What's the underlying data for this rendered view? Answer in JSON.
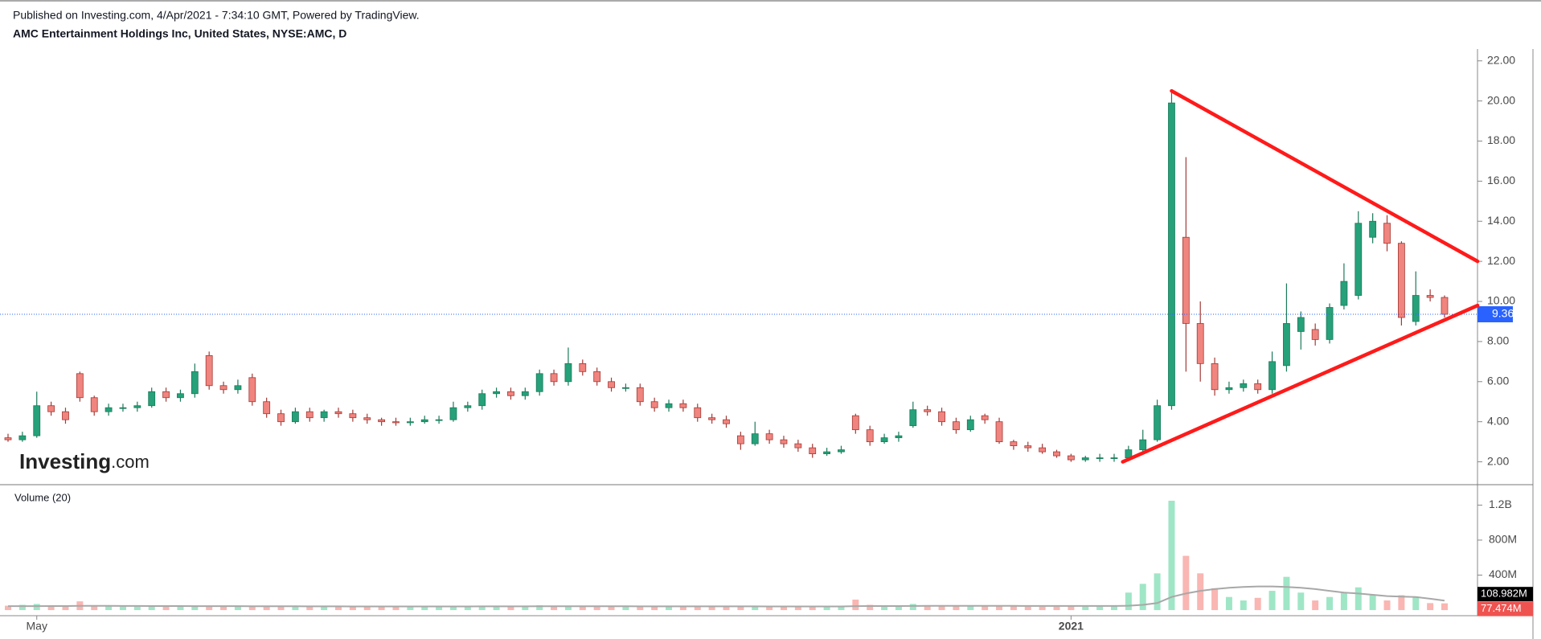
{
  "chart_data": {
    "type": "candlestick",
    "subtitle": "Published on Investing.com, 4/Apr/2021 - 7:34:10 GMT, Powered by TradingView.",
    "title": "AMC Entertainment Holdings Inc, United States, NYSE:AMC, D",
    "watermark": "Investing",
    "watermark_suffix": ".com",
    "categories": [
      null,
      null,
      "May",
      null,
      null,
      null,
      null,
      null,
      null,
      null,
      null,
      null,
      null,
      null,
      null,
      null,
      null,
      null,
      null,
      null,
      null,
      null,
      null,
      null,
      null,
      null,
      null,
      null,
      null,
      null,
      null,
      null,
      null,
      null,
      null,
      null,
      null,
      null,
      null,
      null,
      null,
      null,
      null,
      null,
      null,
      null,
      null,
      null,
      null,
      null,
      null,
      null,
      null,
      null,
      null,
      null,
      null,
      null,
      null,
      null,
      null,
      null,
      null,
      null,
      null,
      null,
      null,
      null,
      null,
      null,
      null,
      null,
      null,
      null,
      "2021",
      null,
      null,
      null,
      null,
      null,
      null,
      null,
      null,
      null,
      null,
      null,
      null,
      null,
      null,
      null,
      null,
      null,
      null,
      null,
      null,
      null,
      null,
      null,
      null,
      null,
      null
    ],
    "open": [
      3.2,
      3.1,
      3.3,
      4.8,
      4.5,
      6.4,
      5.2,
      4.5,
      4.7,
      4.7,
      4.8,
      5.5,
      5.2,
      5.4,
      7.3,
      5.8,
      5.6,
      6.2,
      5.0,
      4.4,
      4.0,
      4.5,
      4.2,
      4.5,
      4.4,
      4.2,
      4.1,
      4.0,
      3.95,
      4.0,
      4.1,
      4.1,
      4.7,
      4.8,
      5.4,
      5.5,
      5.3,
      5.5,
      6.4,
      6.0,
      6.9,
      6.5,
      6.0,
      5.7,
      5.7,
      5.0,
      4.7,
      4.9,
      4.7,
      4.2,
      4.1,
      3.3,
      2.9,
      3.4,
      3.1,
      2.9,
      2.7,
      2.4,
      2.5,
      4.3,
      3.6,
      3.0,
      3.2,
      3.8,
      4.6,
      4.5,
      4.0,
      3.6,
      4.3,
      4.0,
      3.0,
      2.8,
      2.7,
      2.5,
      2.3,
      2.1,
      2.2,
      2.2,
      2.2,
      2.6,
      3.1,
      4.8,
      13.2,
      8.9,
      6.9,
      5.6,
      5.7,
      5.9,
      5.6,
      6.8,
      8.5,
      8.6,
      8.1,
      9.8,
      10.3,
      13.2,
      13.9,
      12.9,
      9.0,
      10.3,
      10.2
    ],
    "high": [
      3.4,
      3.5,
      5.5,
      5.0,
      4.7,
      6.5,
      5.3,
      4.9,
      4.9,
      5.0,
      5.7,
      5.7,
      5.6,
      6.9,
      7.5,
      6.0,
      6.1,
      6.4,
      5.2,
      4.6,
      4.7,
      4.7,
      4.6,
      4.7,
      4.6,
      4.4,
      4.2,
      4.2,
      4.2,
      4.3,
      4.3,
      5.0,
      5.0,
      5.6,
      5.7,
      5.7,
      5.7,
      6.6,
      6.6,
      7.7,
      7.1,
      6.7,
      6.2,
      5.9,
      5.9,
      5.2,
      5.1,
      5.1,
      4.9,
      4.4,
      4.3,
      3.5,
      4.0,
      3.6,
      3.3,
      3.1,
      2.9,
      2.7,
      2.8,
      4.4,
      3.8,
      3.4,
      3.5,
      5.0,
      4.8,
      4.7,
      4.2,
      4.3,
      4.4,
      4.2,
      3.1,
      3.0,
      2.9,
      2.6,
      2.4,
      2.3,
      2.4,
      2.4,
      2.8,
      3.6,
      5.1,
      20.4,
      17.2,
      10.0,
      7.2,
      6.0,
      6.1,
      6.1,
      7.5,
      10.9,
      9.5,
      8.9,
      9.9,
      11.9,
      14.5,
      14.4,
      14.3,
      13.0,
      11.5,
      10.6,
      10.3
    ],
    "low": [
      3.0,
      3.0,
      3.2,
      4.3,
      3.9,
      5.0,
      4.3,
      4.3,
      4.5,
      4.5,
      4.7,
      5.0,
      5.0,
      5.2,
      5.6,
      5.4,
      5.4,
      4.8,
      4.2,
      3.8,
      3.9,
      4.0,
      4.0,
      4.2,
      4.0,
      3.9,
      3.8,
      3.8,
      3.8,
      3.9,
      3.9,
      4.0,
      4.5,
      4.6,
      5.2,
      5.1,
      5.1,
      5.3,
      5.8,
      5.8,
      6.3,
      5.8,
      5.5,
      5.5,
      4.8,
      4.5,
      4.5,
      4.5,
      4.0,
      3.9,
      3.7,
      2.6,
      2.8,
      2.9,
      2.7,
      2.5,
      2.2,
      2.3,
      2.4,
      3.4,
      2.8,
      2.9,
      3.0,
      3.7,
      4.3,
      3.8,
      3.4,
      3.5,
      3.9,
      2.9,
      2.6,
      2.5,
      2.4,
      2.2,
      2.0,
      2.0,
      2.0,
      2.0,
      2.1,
      2.5,
      3.0,
      4.6,
      6.5,
      6.0,
      5.3,
      5.4,
      5.5,
      5.4,
      5.4,
      6.5,
      7.6,
      7.8,
      7.9,
      9.6,
      10.1,
      12.9,
      12.5,
      8.8,
      8.8,
      10.0,
      9.2
    ],
    "close": [
      3.1,
      3.3,
      4.8,
      4.5,
      4.1,
      5.2,
      4.5,
      4.7,
      4.7,
      4.8,
      5.5,
      5.2,
      5.4,
      6.5,
      5.8,
      5.6,
      5.8,
      5.0,
      4.4,
      4.0,
      4.5,
      4.2,
      4.5,
      4.4,
      4.2,
      4.1,
      4.0,
      3.95,
      4.0,
      4.1,
      4.1,
      4.7,
      4.8,
      5.4,
      5.5,
      5.3,
      5.5,
      6.4,
      6.0,
      6.9,
      6.5,
      6.0,
      5.7,
      5.7,
      5.0,
      4.7,
      4.9,
      4.7,
      4.2,
      4.1,
      3.9,
      2.9,
      3.4,
      3.1,
      2.9,
      2.7,
      2.4,
      2.5,
      2.6,
      3.6,
      3.0,
      3.2,
      3.3,
      4.6,
      4.5,
      4.0,
      3.6,
      4.1,
      4.1,
      3.0,
      2.8,
      2.7,
      2.5,
      2.3,
      2.1,
      2.2,
      2.2,
      2.2,
      2.6,
      3.1,
      4.8,
      19.9,
      8.9,
      6.9,
      5.6,
      5.7,
      5.9,
      5.6,
      7.0,
      8.9,
      9.2,
      8.1,
      9.7,
      11.0,
      13.9,
      14.0,
      12.9,
      9.2,
      10.3,
      10.2,
      9.36
    ],
    "up_color": "#26a17a",
    "down_color": "#f0847e",
    "ylim": [
      0.86,
      22.59
    ],
    "yticks": [
      {
        "value": 2,
        "label": "2.00"
      },
      {
        "value": 4,
        "label": "4.00"
      },
      {
        "value": 6,
        "label": "6.00"
      },
      {
        "value": 8,
        "label": "8.00"
      },
      {
        "value": 10,
        "label": "10.00"
      },
      {
        "value": 12,
        "label": "12.00"
      },
      {
        "value": 14,
        "label": "14.00"
      },
      {
        "value": 16,
        "label": "16.00"
      },
      {
        "value": 18,
        "label": "18.00"
      },
      {
        "value": 20,
        "label": "20.00"
      },
      {
        "value": 22,
        "label": "22.00"
      }
    ],
    "last_price": 9.36,
    "last_price_color": "#2962ff",
    "trendline_color": "#ff1a1a",
    "trendlines": [
      {
        "x": [
          81,
          102.3
        ],
        "y": [
          20.5,
          12.0
        ]
      },
      {
        "x": [
          77.6,
          102.3
        ],
        "y": [
          2.0,
          9.8
        ]
      }
    ],
    "volume": {
      "title": "Volume (20)",
      "values": [
        50,
        60,
        70,
        50,
        45,
        100,
        55,
        45,
        40,
        40,
        45,
        40,
        40,
        45,
        50,
        45,
        40,
        40,
        45,
        40,
        40,
        40,
        40,
        40,
        40,
        40,
        40,
        40,
        40,
        40,
        40,
        50,
        45,
        45,
        40,
        40,
        40,
        55,
        45,
        50,
        45,
        40,
        40,
        40,
        40,
        40,
        40,
        40,
        40,
        40,
        40,
        50,
        45,
        40,
        40,
        40,
        40,
        40,
        40,
        120,
        60,
        45,
        45,
        70,
        55,
        50,
        45,
        45,
        45,
        55,
        45,
        40,
        40,
        40,
        45,
        40,
        40,
        45,
        200,
        300,
        420,
        1250,
        620,
        420,
        250,
        150,
        110,
        140,
        220,
        380,
        200,
        110,
        150,
        200,
        260,
        170,
        110,
        170,
        150,
        80,
        77.474
      ],
      "ma": [
        45,
        45,
        45,
        46,
        46,
        48,
        48,
        48,
        47,
        47,
        46,
        46,
        46,
        45,
        45,
        45,
        45,
        44,
        44,
        44,
        44,
        43,
        43,
        43,
        42,
        42,
        42,
        42,
        42,
        42,
        42,
        42,
        42,
        43,
        43,
        43,
        43,
        44,
        44,
        44,
        44,
        44,
        44,
        44,
        43,
        43,
        43,
        43,
        43,
        43,
        43,
        43,
        43,
        42,
        42,
        42,
        42,
        42,
        42,
        45,
        46,
        46,
        46,
        47,
        48,
        48,
        48,
        48,
        48,
        48,
        48,
        47,
        47,
        47,
        47,
        47,
        47,
        47,
        50,
        60,
        80,
        150,
        190,
        220,
        240,
        255,
        265,
        270,
        270,
        265,
        255,
        240,
        220,
        200,
        190,
        175,
        160,
        155,
        150,
        130,
        108.982
      ],
      "last_label": "77.474M",
      "ma_last_label": "108.982M",
      "ma_color": "#a8a8a8",
      "up_color": "#9fe6c6",
      "down_color": "#f9b6b2",
      "ylim": [
        -64,
        1415
      ],
      "yticks": [
        0,
        {
          "value": 400,
          "label": "400M"
        },
        {
          "value": 800,
          "label": "800M"
        },
        {
          "value": 1200,
          "label": "1.2B"
        }
      ]
    }
  }
}
